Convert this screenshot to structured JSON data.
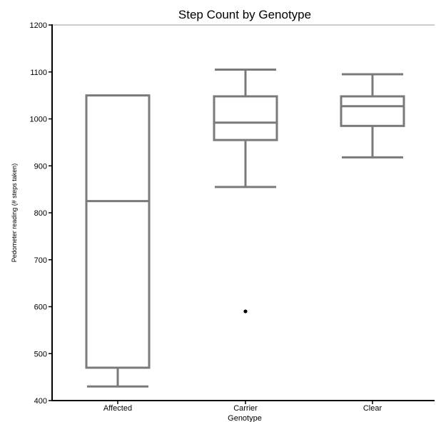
{
  "chart_data": {
    "type": "box",
    "title": "Step Count by Genotype",
    "xlabel": "Genotype",
    "ylabel": "Pedometer reading (# steps taken)",
    "ylim": [
      400,
      1200
    ],
    "yticks": [
      400,
      500,
      600,
      700,
      800,
      900,
      1000,
      1100,
      1200
    ],
    "grid": false,
    "categories": [
      "Affected",
      "Carrier",
      "Clear"
    ],
    "boxes": [
      {
        "category": "Affected",
        "whisker_low": 430,
        "q1": 470,
        "median": 825,
        "q3": 1050,
        "whisker_high": 1050,
        "outliers": []
      },
      {
        "category": "Carrier",
        "whisker_low": 855,
        "q1": 955,
        "median": 992,
        "q3": 1048,
        "whisker_high": 1105,
        "outliers": [
          590
        ]
      },
      {
        "category": "Clear",
        "whisker_low": 918,
        "q1": 985,
        "median": 1027,
        "q3": 1048,
        "whisker_high": 1095,
        "outliers": []
      }
    ],
    "colors": {
      "box": "#7a7a7a",
      "axis": "#000000",
      "outlier": "#000000",
      "frame_top": "#cccccc"
    }
  }
}
